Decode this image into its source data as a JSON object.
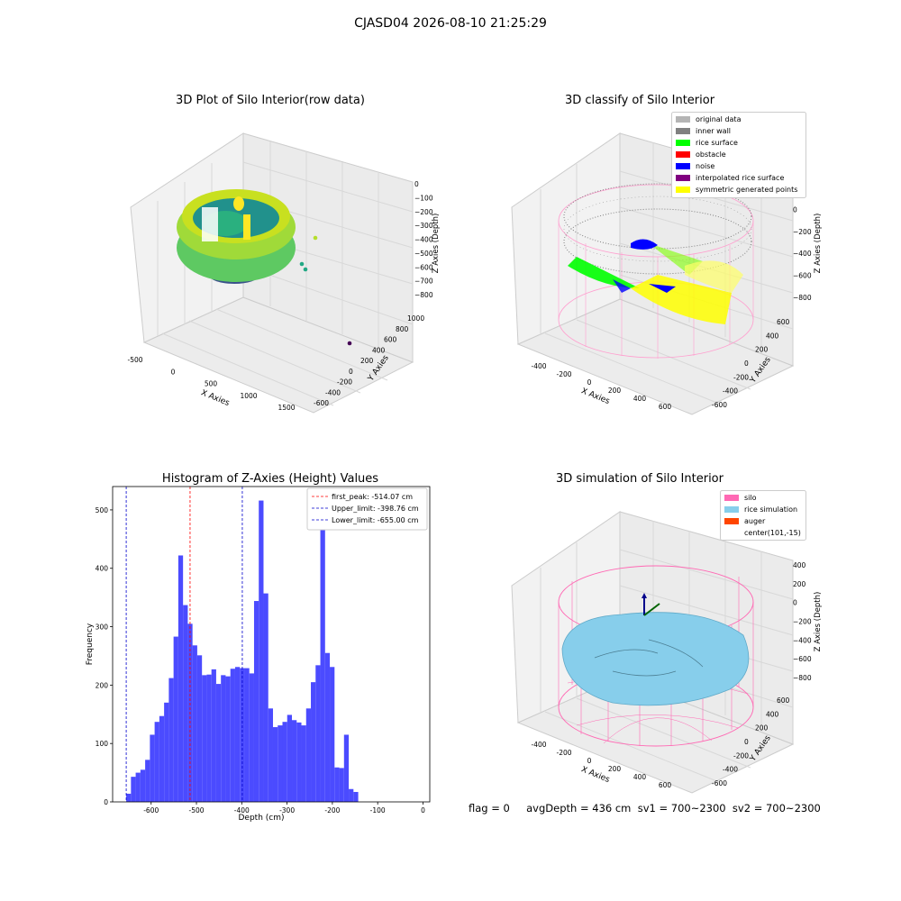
{
  "figure": {
    "suptitle": "CJASD04 2026-08-10 21:25:29",
    "footer": "flag = 0     avgDepth = 436 cm  sv1 = 700~2300  sv2 = 700~2300"
  },
  "colors": {
    "histogram_bar": "#4b4bff",
    "first_peak_line": "#ff0000",
    "limit_line": "#0000cc",
    "silo": "#ff69b4",
    "rice_simulation": "#87ceeb",
    "auger": "#ff4500",
    "original_data": "#b4b4b4",
    "inner_wall": "#808080",
    "rice_surface": "#00ff00",
    "obstacle": "#ff0000",
    "noise": "#0000ff",
    "interpolated_rice_surface": "#800080",
    "symmetric_generated_points": "#ffff00"
  },
  "chart_data": [
    {
      "type": "scatter",
      "subtype": "3d",
      "title": "3D Plot of Silo Interior(row data)",
      "xlabel": "X Axies",
      "ylabel": "Y Axies",
      "zlabel": "Z Axies (Depth)",
      "x_ticks": [
        "-500",
        "0",
        "500",
        "1000",
        "1500"
      ],
      "y_ticks": [
        "-600",
        "-400",
        "-200",
        "0",
        "200",
        "400",
        "600",
        "800",
        "1000"
      ],
      "z_ticks": [
        "0",
        "−100",
        "−200",
        "−300",
        "−400",
        "−500",
        "−600",
        "−700",
        "−800"
      ],
      "colormap": "viridis"
    },
    {
      "type": "scatter",
      "subtype": "3d",
      "title": "3D classify of Silo Interior",
      "xlabel": "X Axies",
      "ylabel": "Y Axies",
      "zlabel": "Z Axies (Depth)",
      "x_ticks": [
        "-400",
        "-200",
        "0",
        "200",
        "400",
        "600"
      ],
      "y_ticks": [
        "-600",
        "-400",
        "-200",
        "0",
        "200",
        "400",
        "600"
      ],
      "z_ticks": [
        "200",
        "0",
        "−200",
        "−400",
        "−600",
        "−800"
      ],
      "legend": [
        "original data",
        "inner wall",
        "rice surface",
        "obstacle",
        "noise",
        "interpolated rice surface",
        "symmetric generated points"
      ],
      "legend_position": "top-right"
    },
    {
      "type": "bar",
      "subtype": "histogram",
      "title": "Histogram of Z-Axies (Height) Values",
      "xlabel": "Depth (cm)",
      "ylabel": "Frequency",
      "xlim": [
        -685,
        15
      ],
      "ylim": [
        0,
        540
      ],
      "x_ticks": [
        -600,
        -500,
        -400,
        -300,
        -200,
        -100,
        0
      ],
      "y_ticks": [
        0,
        100,
        200,
        300,
        400,
        500
      ],
      "bin_start": -655,
      "bin_width": 10.45,
      "values": [
        14,
        43,
        50,
        55,
        72,
        115,
        137,
        147,
        170,
        212,
        283,
        422,
        337,
        305,
        268,
        251,
        217,
        218,
        227,
        202,
        217,
        215,
        228,
        231,
        229,
        229,
        220,
        344,
        516,
        357,
        160,
        128,
        131,
        137,
        149,
        140,
        136,
        131,
        160,
        205,
        234,
        473,
        255,
        231,
        59,
        58,
        115,
        22,
        17
      ],
      "vlines": [
        {
          "label": "first_peak: -514.07 cm",
          "x": -514.07,
          "style": "red-dashed"
        },
        {
          "label": "Upper_limit: -398.76 cm",
          "x": -398.76,
          "style": "blue-dashed"
        },
        {
          "label": "Lower_limit: -655.00 cm",
          "x": -655.0,
          "style": "blue-dashed"
        }
      ],
      "legend_position": "top-right"
    },
    {
      "type": "area",
      "subtype": "3d-surface",
      "title": "3D simulation of Silo Interior",
      "xlabel": "X Axies",
      "ylabel": "Y Axies",
      "zlabel": "Z Axies (Depth)",
      "x_ticks": [
        "-400",
        "-200",
        "0",
        "200",
        "400",
        "600"
      ],
      "y_ticks": [
        "-600",
        "-400",
        "-200",
        "0",
        "200",
        "400",
        "600"
      ],
      "z_ticks": [
        "400",
        "200",
        "0",
        "−200",
        "−400",
        "−600",
        "−800"
      ],
      "legend": [
        "silo",
        "rice simulation",
        "auger",
        "center(101,-15)"
      ],
      "legend_position": "top-right"
    }
  ]
}
